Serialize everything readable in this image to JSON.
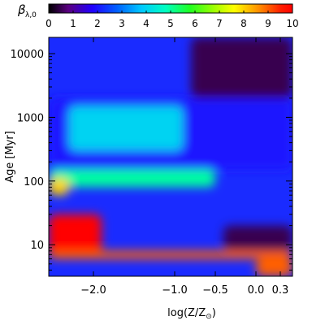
{
  "chart_data": {
    "type": "heatmap",
    "colorbar": {
      "label": "β",
      "label_subscript": "λ,0",
      "ticks": [
        "0",
        "1",
        "2",
        "3",
        "4",
        "5",
        "6",
        "7",
        "8",
        "9",
        "10"
      ],
      "range": [
        0,
        10
      ],
      "colormap": "rainbow (black-purple-blue-cyan-green-yellow-red)",
      "placement": "top"
    },
    "xaxis": {
      "label": "log(Z/Z",
      "label_suffix": ")",
      "label_symbol": "⊙",
      "range": [
        -2.55,
        0.45
      ],
      "ticks": [
        {
          "value": -2.0,
          "label": "−2.0"
        },
        {
          "value": -1.0,
          "label": "−1.0"
        },
        {
          "value": -0.5,
          "label": "−0.5"
        },
        {
          "value": 0.0,
          "label": "0.0"
        },
        {
          "value": 0.3,
          "label": "0.3"
        }
      ]
    },
    "yaxis": {
      "label": "Age",
      "label_unit": "[Myr]",
      "scale": "log",
      "range": [
        3.2,
        18000
      ],
      "ticks": [
        {
          "value": 10,
          "label": "10"
        },
        {
          "value": 100,
          "label": "100"
        },
        {
          "value": 1000,
          "label": "1000"
        },
        {
          "value": 10000,
          "label": "10000"
        }
      ]
    },
    "grid": false,
    "regions": [
      {
        "description_value": 0.5,
        "x": [
          -0.8,
          0.45
        ],
        "y": [
          2000,
          18000
        ]
      },
      {
        "description_value": 2.0,
        "x": [
          -2.55,
          0.45
        ],
        "y": [
          150,
          2000
        ]
      },
      {
        "description_value": 4.0,
        "x": [
          -2.3,
          -0.9
        ],
        "y": [
          300,
          1500
        ]
      },
      {
        "description_value": 5.0,
        "x": [
          -2.55,
          -0.5
        ],
        "y": [
          80,
          150
        ]
      },
      {
        "description_value": 8.0,
        "x": [
          -2.55,
          -2.3
        ],
        "y": [
          60,
          110
        ]
      },
      {
        "description_value": 10.0,
        "x": [
          -2.55,
          -1.9
        ],
        "y": [
          7,
          30
        ]
      },
      {
        "description_value": 0.5,
        "x": [
          -0.4,
          0.45
        ],
        "y": [
          8,
          20
        ]
      },
      {
        "description_value": 9.0,
        "x": [
          -2.55,
          0.45
        ],
        "y": [
          6,
          8
        ]
      },
      {
        "description_value": 9.0,
        "x": [
          0.0,
          0.45
        ],
        "y": [
          3.2,
          6
        ]
      }
    ]
  }
}
